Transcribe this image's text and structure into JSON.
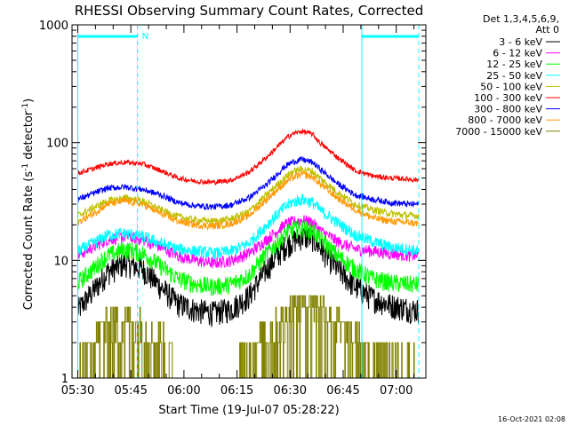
{
  "chart_data": {
    "type": "line",
    "title": "RHESSI Observing Summary Count Rates, Corrected",
    "xlabel": "Start Time (19-Jul-07 05:28:22)",
    "ylabel_main": "Corrected Count Rate (s",
    "ylabel_sup1": "-1",
    "ylabel_mid": " detector",
    "ylabel_sup2": "-1",
    "ylabel_end": ")",
    "footer_date": "16-Oct-2021 02:08",
    "legend_header": [
      "Det 1,3,4,5,6,9,",
      "Att 0"
    ],
    "x_range_minutes": [
      0,
      100
    ],
    "ylim": [
      1,
      1000
    ],
    "y_scale": "log",
    "x_tick_labels": [
      {
        "label": "05:30",
        "minute": 1.63
      },
      {
        "label": "05:45",
        "minute": 16.63
      },
      {
        "label": "06:00",
        "minute": 31.63
      },
      {
        "label": "06:15",
        "minute": 46.63
      },
      {
        "label": "06:30",
        "minute": 61.63
      },
      {
        "label": "06:45",
        "minute": 76.63
      },
      {
        "label": "07:00",
        "minute": 91.63
      }
    ],
    "y_tick_labels": [
      {
        "label": "1000",
        "value": 1000
      },
      {
        "label": "100",
        "value": 100
      },
      {
        "label": "10",
        "value": 10
      },
      {
        "label": "1",
        "value": 1
      }
    ],
    "annotations": {
      "night_marker": "N",
      "night_intervals": [
        [
          1.63,
          18.5
        ],
        [
          81.9,
          98.0
        ]
      ],
      "vertical_lines": [
        {
          "minute": 1.63,
          "style": "solid"
        },
        {
          "minute": 18.5,
          "style": "dashed"
        },
        {
          "minute": 81.9,
          "style": "solid"
        },
        {
          "minute": 98.0,
          "style": "dashed"
        }
      ]
    },
    "series": [
      {
        "name": "3 - 6 keV",
        "color": "#000000",
        "x": [
          1.63,
          6,
          10,
          15,
          20,
          25,
          30,
          35,
          40,
          45,
          50,
          55,
          60,
          62,
          65,
          68,
          70,
          75,
          80,
          85,
          90,
          95,
          98
        ],
        "y": [
          3.8,
          5.5,
          8,
          9.5,
          8.5,
          6,
          4.3,
          3.8,
          3.6,
          3.9,
          5,
          8.5,
          13,
          14.5,
          16,
          15.5,
          13,
          8.5,
          6,
          4.8,
          4.2,
          3.9,
          3.8
        ]
      },
      {
        "name": "6 - 12 keV",
        "color": "#ff00ff",
        "x": [
          1.63,
          6,
          10,
          15,
          20,
          25,
          30,
          35,
          40,
          45,
          50,
          55,
          60,
          62,
          65,
          68,
          70,
          75,
          80,
          85,
          90,
          95,
          98
        ],
        "y": [
          11,
          13,
          15,
          16,
          15,
          13,
          11,
          10,
          9.5,
          10,
          11.5,
          15,
          20,
          21,
          22,
          21,
          18,
          14.5,
          12.5,
          12,
          11.5,
          11,
          11
        ]
      },
      {
        "name": "12 - 25 keV",
        "color": "#00ff00",
        "x": [
          1.63,
          6,
          10,
          15,
          20,
          25,
          30,
          35,
          40,
          45,
          50,
          55,
          60,
          62,
          65,
          68,
          70,
          75,
          80,
          85,
          90,
          95,
          98
        ],
        "y": [
          6.5,
          8.5,
          11,
          12.5,
          11.5,
          9,
          7,
          6.3,
          6,
          6.3,
          7.5,
          11.5,
          16.5,
          18,
          19,
          18,
          15.5,
          11,
          8.5,
          7,
          6.5,
          6.3,
          6.3
        ]
      },
      {
        "name": "25 - 50 keV",
        "color": "#00ffff",
        "x": [
          1.63,
          6,
          10,
          15,
          20,
          25,
          30,
          35,
          40,
          45,
          50,
          55,
          60,
          62,
          65,
          68,
          70,
          75,
          80,
          85,
          90,
          95,
          98
        ],
        "y": [
          12,
          14,
          16.5,
          17,
          16,
          14,
          12.5,
          12,
          11.5,
          12,
          14,
          20,
          28,
          31,
          33,
          31,
          27,
          21,
          16.5,
          14.5,
          13,
          12.5,
          12
        ]
      },
      {
        "name": "50 - 100 keV",
        "color": "#c0c000",
        "x": [
          1.63,
          6,
          10,
          15,
          20,
          25,
          30,
          35,
          40,
          45,
          50,
          55,
          60,
          62,
          65,
          68,
          70,
          75,
          80,
          85,
          90,
          95,
          98
        ],
        "y": [
          24,
          28,
          32,
          34,
          32,
          27,
          23.5,
          22,
          21.5,
          22.5,
          26,
          36,
          50,
          56,
          60,
          57,
          50,
          38,
          30,
          27,
          25,
          24,
          24
        ]
      },
      {
        "name": "100 - 300 keV",
        "color": "#ff0000",
        "x": [
          1.63,
          6,
          10,
          15,
          20,
          25,
          30,
          35,
          40,
          45,
          50,
          55,
          60,
          62,
          65,
          68,
          70,
          75,
          80,
          85,
          90,
          95,
          98
        ],
        "y": [
          55,
          60,
          66,
          68,
          66,
          58,
          50,
          47,
          46,
          48,
          56,
          75,
          105,
          118,
          125,
          118,
          100,
          75,
          58,
          52,
          50,
          49,
          48
        ]
      },
      {
        "name": "300 - 800 keV",
        "color": "#0000ff",
        "x": [
          1.63,
          6,
          10,
          15,
          20,
          25,
          30,
          35,
          40,
          45,
          50,
          55,
          60,
          62,
          65,
          68,
          70,
          75,
          80,
          85,
          90,
          95,
          98
        ],
        "y": [
          33,
          37,
          41,
          42,
          40,
          36,
          31,
          29,
          28.5,
          29.5,
          34,
          44,
          62,
          68,
          72,
          68,
          60,
          45,
          36,
          33,
          31,
          30,
          30
        ]
      },
      {
        "name": "800 - 7000 keV",
        "color": "#ff9900",
        "x": [
          1.63,
          6,
          10,
          15,
          20,
          25,
          30,
          35,
          40,
          45,
          50,
          55,
          60,
          62,
          65,
          68,
          70,
          75,
          80,
          85,
          90,
          95,
          98
        ],
        "y": [
          21,
          25,
          30,
          32,
          30,
          25,
          21.5,
          20,
          19.5,
          20.5,
          24,
          33,
          45,
          50,
          54,
          51,
          45,
          34,
          27,
          23,
          21.5,
          21,
          20.5
        ]
      },
      {
        "name": "7000 - 15000 keV",
        "color": "#808000",
        "x": [
          1.63,
          6,
          10,
          15,
          20,
          25,
          30,
          35,
          40,
          45,
          50,
          55,
          60,
          62,
          65,
          68,
          70,
          75,
          80,
          85,
          90,
          95,
          98
        ],
        "y": [
          1,
          2.2,
          2.8,
          3,
          2.6,
          2,
          1,
          1,
          1,
          1,
          1.5,
          2.2,
          3,
          3.8,
          4.5,
          4.5,
          4,
          2.8,
          2,
          1.5,
          1.3,
          1.1,
          1
        ]
      }
    ]
  }
}
